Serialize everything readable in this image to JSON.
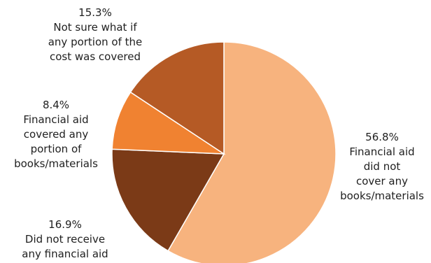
{
  "chart_data": {
    "type": "pie",
    "title": "",
    "slices": [
      {
        "value": 56.8,
        "percent_label": "56.8%",
        "label_lines": [
          "Financial aid",
          "did not",
          "cover any",
          "books/materials"
        ],
        "color": "#F7B37E"
      },
      {
        "value": 16.9,
        "percent_label": "16.9%",
        "label_lines": [
          "Did not receive",
          "any financial aid"
        ],
        "color": "#7B3A17"
      },
      {
        "value": 8.4,
        "percent_label": "8.4%",
        "label_lines": [
          "Financial aid",
          "covered any",
          "portion of",
          "books/materials"
        ],
        "color": "#F08231"
      },
      {
        "value": 15.3,
        "percent_label": "15.3%",
        "label_lines": [
          "Not sure what if",
          "any portion of the",
          "cost was covered"
        ],
        "color": "#B55A25"
      }
    ],
    "start_angle_deg": 0,
    "direction": "clockwise",
    "slice_border_color": "#ffffff",
    "legend": "none"
  }
}
